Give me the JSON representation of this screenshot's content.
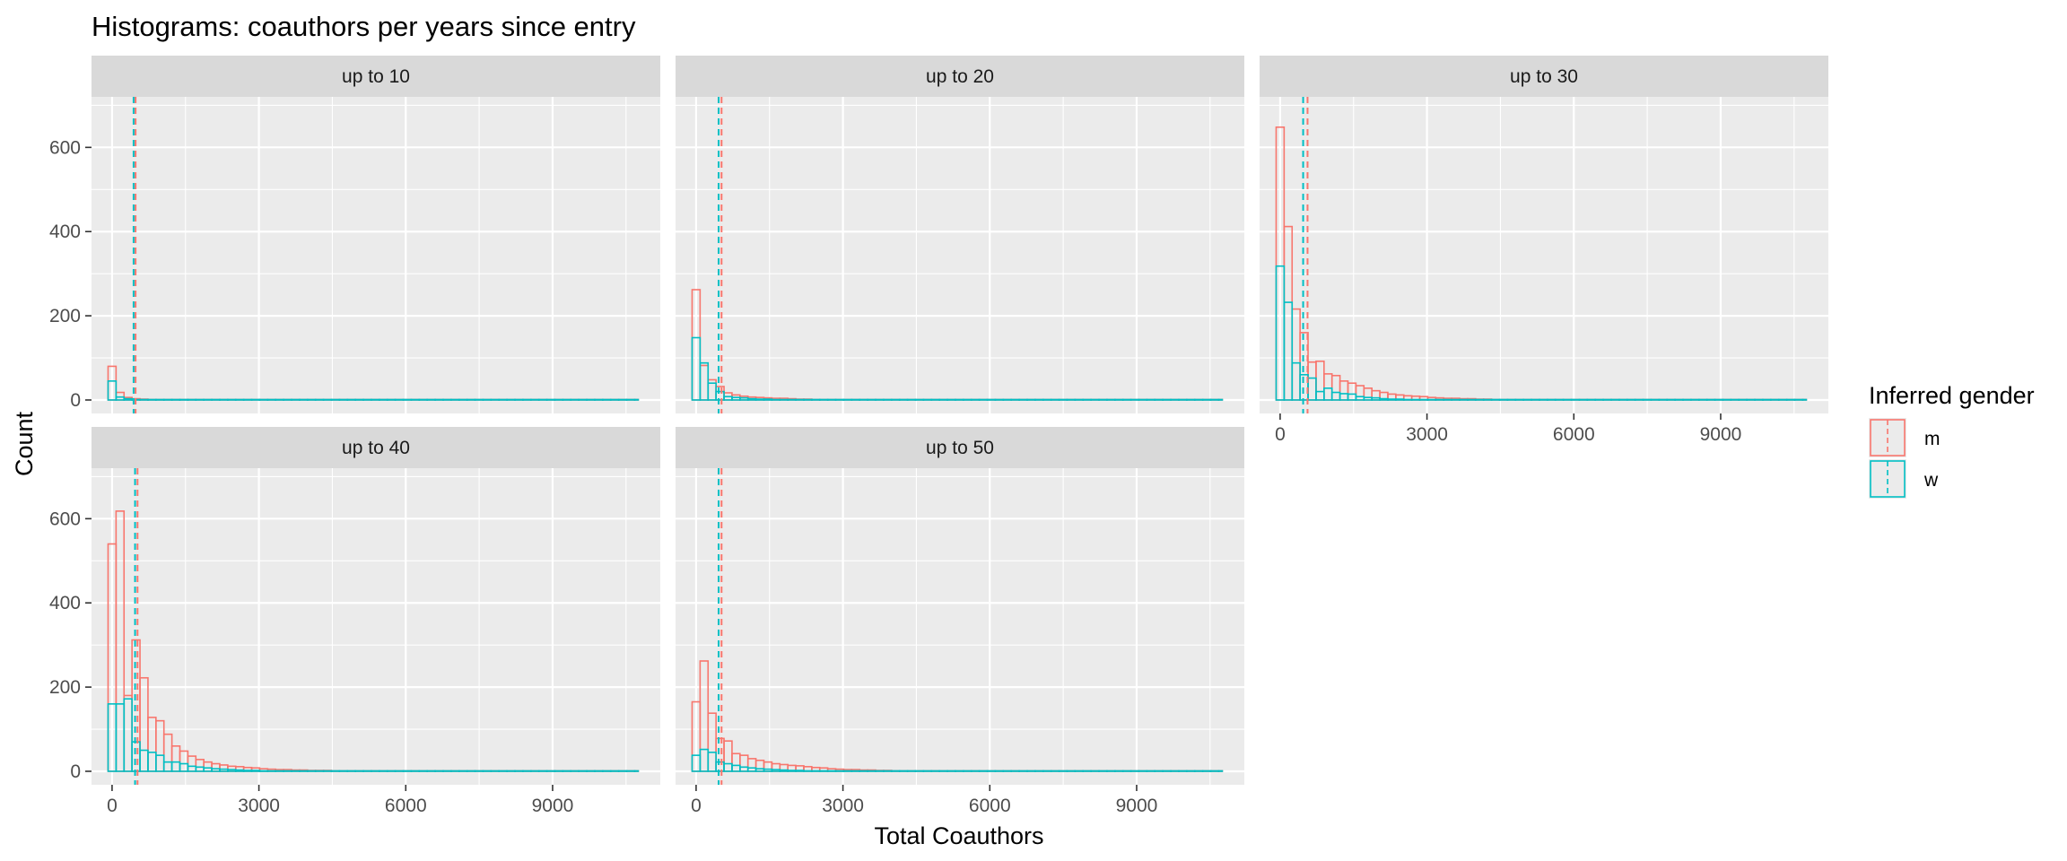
{
  "chart_data": {
    "type": "bar",
    "title": "Histograms: coauthors per years since entry",
    "xlabel": "Total Coauthors",
    "ylabel": "Count",
    "xlim": [
      -420,
      11200
    ],
    "ylim": [
      -32,
      720
    ],
    "x_ticks": [
      0,
      3000,
      6000,
      9000
    ],
    "x_tick_labels": [
      "0",
      "3000",
      "6000",
      "9000"
    ],
    "y_ticks": [
      0,
      200,
      400,
      600
    ],
    "y_tick_labels": [
      "0",
      "200",
      "400",
      "600"
    ],
    "bin_width": 163,
    "data_max_x": 10750,
    "grid": true,
    "legend": {
      "title": "Inferred gender",
      "position": "right",
      "entries": [
        {
          "key": "m",
          "label": "m",
          "color": "#F8766D"
        },
        {
          "key": "w",
          "label": "w",
          "color": "#00BFC4"
        }
      ]
    },
    "colors": {
      "m": "#F8766D",
      "w": "#00BFC4",
      "panel_bg": "#EBEBEB",
      "strip_bg": "#D9D9D9",
      "grid": "#FFFFFF"
    },
    "panels": [
      {
        "label": "up to 10",
        "mean_lines": {
          "m": 480,
          "w": 440
        },
        "series": [
          {
            "name": "m",
            "values": [
              80,
              18,
              6,
              3,
              2,
              1
            ]
          },
          {
            "name": "w",
            "values": [
              45,
              7,
              3,
              1
            ]
          }
        ]
      },
      {
        "label": "up to 20",
        "mean_lines": {
          "m": 520,
          "w": 460
        },
        "series": [
          {
            "name": "m",
            "values": [
              262,
              82,
              48,
              32,
              17,
              12,
              9,
              7,
              6,
              5,
              4,
              4,
              3,
              2,
              2,
              1,
              1,
              1,
              1
            ]
          },
          {
            "name": "w",
            "values": [
              148,
              88,
              40,
              20,
              8,
              6,
              5,
              3,
              2,
              2,
              1,
              1,
              1,
              1,
              1,
              1
            ]
          }
        ]
      },
      {
        "label": "up to 30",
        "mean_lines": {
          "m": 560,
          "w": 470
        },
        "series": [
          {
            "name": "m",
            "values": [
              648,
              412,
              216,
              160,
              90,
              92,
              62,
              58,
              45,
              40,
              34,
              28,
              22,
              18,
              14,
              12,
              10,
              9,
              8,
              6,
              5,
              4,
              4,
              3,
              3,
              2,
              2,
              1
            ]
          },
          {
            "name": "w",
            "values": [
              318,
              232,
              88,
              60,
              52,
              20,
              28,
              18,
              15,
              14,
              8,
              6,
              5,
              3,
              2,
              2,
              1,
              1
            ]
          }
        ]
      },
      {
        "label": "up to 40",
        "mean_lines": {
          "m": 520,
          "w": 470
        },
        "series": [
          {
            "name": "m",
            "values": [
              540,
              618,
              180,
              312,
              222,
              128,
              120,
              88,
              60,
              48,
              36,
              28,
              22,
              18,
              15,
              12,
              11,
              9,
              8,
              6,
              5,
              4,
              4,
              3,
              3,
              2,
              2,
              2,
              1,
              1,
              1
            ]
          },
          {
            "name": "w",
            "values": [
              160,
              160,
              172,
              70,
              50,
              45,
              38,
              22,
              22,
              18,
              12,
              10,
              8,
              6,
              5,
              4,
              3,
              2,
              2,
              1,
              1
            ]
          }
        ]
      },
      {
        "label": "up to 50",
        "mean_lines": {
          "m": 520,
          "w": 460
        },
        "series": [
          {
            "name": "m",
            "values": [
              165,
              262,
              138,
              78,
              72,
              42,
              38,
              30,
              26,
              22,
              18,
              16,
              14,
              13,
              11,
              9,
              8,
              6,
              5,
              4,
              4,
              3,
              3,
              2,
              2,
              1,
              1,
              1
            ]
          },
          {
            "name": "w",
            "values": [
              38,
              52,
              45,
              22,
              18,
              14,
              10,
              8,
              6,
              5,
              4,
              3,
              2,
              2,
              1,
              1
            ]
          }
        ]
      }
    ]
  }
}
